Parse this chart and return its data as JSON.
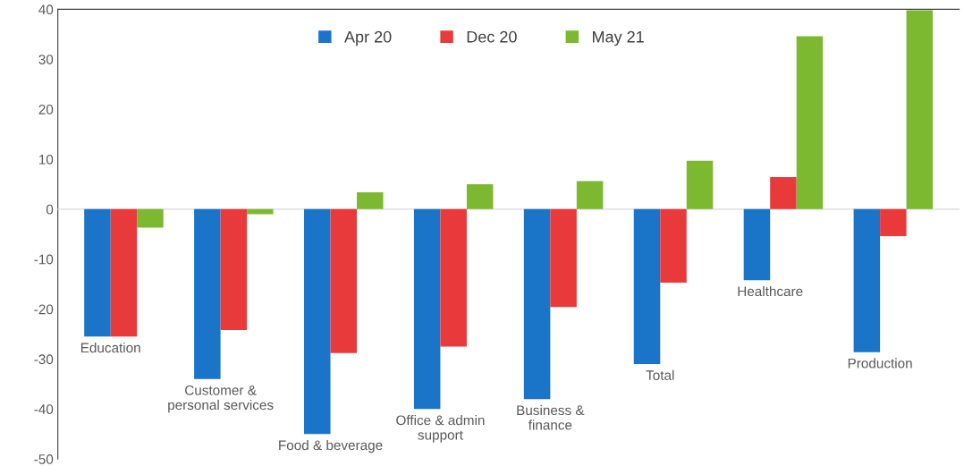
{
  "chart_data": {
    "type": "bar",
    "categories": [
      "Education",
      "Customer &\npersonal services",
      "Food & beverage",
      "Office & admin\nsupport",
      "Business &\nfinance",
      "Total",
      "Healthcare",
      "Production"
    ],
    "series": [
      {
        "name": "Apr 20",
        "color": "#1a75c9",
        "values": [
          -25.5,
          -34,
          -45,
          -40,
          -38,
          -31,
          -14.2,
          -28.6
        ]
      },
      {
        "name": "Dec 20",
        "color": "#e83a3a",
        "values": [
          -25.5,
          -24.2,
          -28.8,
          -27.5,
          -19.6,
          -14.7,
          6.4,
          -5.4
        ]
      },
      {
        "name": "May 21",
        "color": "#7cb830",
        "values": [
          -3.7,
          -1,
          3.4,
          5,
          5.6,
          9.7,
          34.6,
          39.8
        ]
      }
    ],
    "ylim": [
      -50,
      40
    ],
    "yticks": [
      -50,
      -40,
      -30,
      -20,
      -10,
      0,
      10,
      20,
      30,
      40
    ],
    "legend": "top"
  }
}
